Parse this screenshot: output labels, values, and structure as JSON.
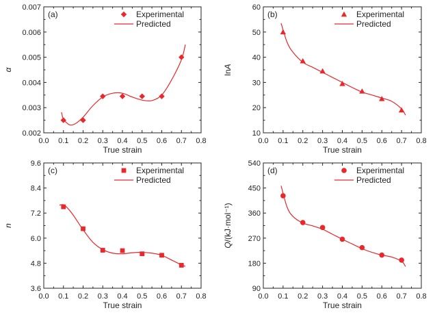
{
  "colors": {
    "series": "#e8282b",
    "axis": "#222222"
  },
  "chart_data": [
    {
      "id": "a",
      "type": "scatter",
      "panel_label": "(a)",
      "xlabel": "True strain",
      "ylabel": "α",
      "ylabel_italic": true,
      "xlim": [
        0.0,
        0.8
      ],
      "ylim": [
        0.002,
        0.007
      ],
      "xticks": [
        0.0,
        0.1,
        0.2,
        0.3,
        0.4,
        0.5,
        0.6,
        0.7,
        0.8
      ],
      "xtick_labels": [
        "0.0",
        "0.1",
        "0.2",
        "0.3",
        "0.4",
        "0.5",
        "0.6",
        "0.7",
        "0.8"
      ],
      "yticks": [
        0.002,
        0.003,
        0.004,
        0.005,
        0.006,
        0.007
      ],
      "ytick_labels": [
        "0.002",
        "0.003",
        "0.004",
        "0.005",
        "0.006",
        "0.007"
      ],
      "marker": "diamond",
      "legend": {
        "experimental": "Experimental",
        "predicted": "Predicted",
        "position": "top-right"
      },
      "series": [
        {
          "name": "Experimental",
          "x": [
            0.1,
            0.2,
            0.3,
            0.4,
            0.5,
            0.6,
            0.7
          ],
          "y": [
            0.0025,
            0.0025,
            0.00345,
            0.00345,
            0.00345,
            0.00345,
            0.005
          ]
        },
        {
          "name": "Predicted",
          "x": [
            0.09,
            0.1,
            0.13,
            0.16,
            0.2,
            0.25,
            0.3,
            0.35,
            0.4,
            0.45,
            0.5,
            0.55,
            0.6,
            0.65,
            0.7,
            0.72
          ],
          "y": [
            0.00282,
            0.00255,
            0.00232,
            0.00236,
            0.00262,
            0.00308,
            0.00342,
            0.00357,
            0.00357,
            0.00342,
            0.0033,
            0.00328,
            0.0035,
            0.0041,
            0.0049,
            0.0055
          ]
        }
      ]
    },
    {
      "id": "b",
      "type": "scatter",
      "panel_label": "(b)",
      "xlabel": "True strain",
      "ylabel": "lnA",
      "ylabel_prefix": "ln",
      "ylabel_var": "A",
      "xlim": [
        0.0,
        0.8
      ],
      "ylim": [
        10,
        60
      ],
      "xticks": [
        0.0,
        0.1,
        0.2,
        0.3,
        0.4,
        0.5,
        0.6,
        0.7,
        0.8
      ],
      "xtick_labels": [
        "0.0",
        "0.1",
        "0.2",
        "0.3",
        "0.4",
        "0.5",
        "0.6",
        "0.7",
        "0.8"
      ],
      "yticks": [
        10,
        20,
        30,
        40,
        50,
        60
      ],
      "ytick_labels": [
        "10",
        "20",
        "30",
        "40",
        "50",
        "60"
      ],
      "marker": "triangle",
      "legend": {
        "experimental": "Experimental",
        "predicted": "Predicted",
        "position": "top-right"
      },
      "series": [
        {
          "name": "Experimental",
          "x": [
            0.1,
            0.2,
            0.3,
            0.4,
            0.5,
            0.6,
            0.7
          ],
          "y": [
            50,
            38.5,
            34.5,
            29.5,
            26.5,
            23.5,
            19
          ]
        },
        {
          "name": "Predicted",
          "x": [
            0.09,
            0.12,
            0.15,
            0.2,
            0.25,
            0.3,
            0.35,
            0.4,
            0.45,
            0.5,
            0.55,
            0.6,
            0.65,
            0.7,
            0.72
          ],
          "y": [
            53.5,
            46,
            42,
            38,
            36,
            34,
            32,
            30,
            28,
            26.2,
            25,
            23.8,
            22.5,
            19.5,
            17
          ]
        }
      ]
    },
    {
      "id": "c",
      "type": "scatter",
      "panel_label": "(c)",
      "xlabel": "True strain",
      "ylabel": "n",
      "ylabel_italic": true,
      "xlim": [
        0.0,
        0.8
      ],
      "ylim": [
        3.6,
        9.6
      ],
      "xticks": [
        0.0,
        0.1,
        0.2,
        0.3,
        0.4,
        0.5,
        0.6,
        0.7,
        0.8
      ],
      "xtick_labels": [
        "0.0",
        "0.1",
        "0.2",
        "0.3",
        "0.4",
        "0.5",
        "0.6",
        "0.7",
        "0.8"
      ],
      "yticks": [
        3.6,
        4.8,
        6.0,
        7.2,
        8.4,
        9.6
      ],
      "ytick_labels": [
        "3.6",
        "4.8",
        "6.0",
        "7.2",
        "8.4",
        "9.6"
      ],
      "marker": "square",
      "legend": {
        "experimental": "Experimental",
        "predicted": "Predicted",
        "position": "top-right"
      },
      "series": [
        {
          "name": "Experimental",
          "x": [
            0.1,
            0.2,
            0.3,
            0.4,
            0.5,
            0.6,
            0.7
          ],
          "y": [
            7.5,
            6.45,
            5.42,
            5.4,
            5.25,
            5.18,
            4.7
          ]
        },
        {
          "name": "Predicted",
          "x": [
            0.08,
            0.1,
            0.12,
            0.15,
            0.2,
            0.25,
            0.3,
            0.35,
            0.4,
            0.45,
            0.5,
            0.55,
            0.6,
            0.65,
            0.7,
            0.72
          ],
          "y": [
            7.58,
            7.6,
            7.45,
            7.1,
            6.4,
            5.8,
            5.45,
            5.28,
            5.25,
            5.3,
            5.32,
            5.28,
            5.18,
            4.95,
            4.72,
            4.65
          ]
        }
      ]
    },
    {
      "id": "d",
      "type": "scatter",
      "panel_label": "(d)",
      "xlabel": "True strain",
      "ylabel": "Q/(kJ·mol⁻¹)",
      "ylabel_italic_prefix": "Q",
      "ylabel_rest": "/(kJ·mol⁻¹)",
      "xlim": [
        0.0,
        0.8
      ],
      "ylim": [
        90,
        540
      ],
      "xticks": [
        0.0,
        0.1,
        0.2,
        0.3,
        0.4,
        0.5,
        0.6,
        0.7,
        0.8
      ],
      "xtick_labels": [
        "0.0",
        "0.1",
        "0.2",
        "0.3",
        "0.4",
        "0.5",
        "0.6",
        "0.7",
        "0.8"
      ],
      "yticks": [
        90,
        180,
        270,
        360,
        450,
        540
      ],
      "ytick_labels": [
        "90",
        "180",
        "270",
        "360",
        "450",
        "540"
      ],
      "marker": "circle",
      "legend": {
        "experimental": "Experimental",
        "predicted": "Predicted",
        "position": "top-right"
      },
      "series": [
        {
          "name": "Experimental",
          "x": [
            0.1,
            0.2,
            0.3,
            0.4,
            0.5,
            0.6,
            0.7
          ],
          "y": [
            422,
            326,
            308,
            266,
            236,
            209,
            191
          ]
        },
        {
          "name": "Predicted",
          "x": [
            0.09,
            0.12,
            0.15,
            0.2,
            0.25,
            0.3,
            0.35,
            0.4,
            0.45,
            0.5,
            0.55,
            0.6,
            0.65,
            0.7,
            0.72
          ],
          "y": [
            458,
            382,
            348,
            324,
            314,
            302,
            284,
            266,
            249,
            232,
            219,
            209,
            202,
            187,
            168
          ]
        }
      ]
    }
  ]
}
